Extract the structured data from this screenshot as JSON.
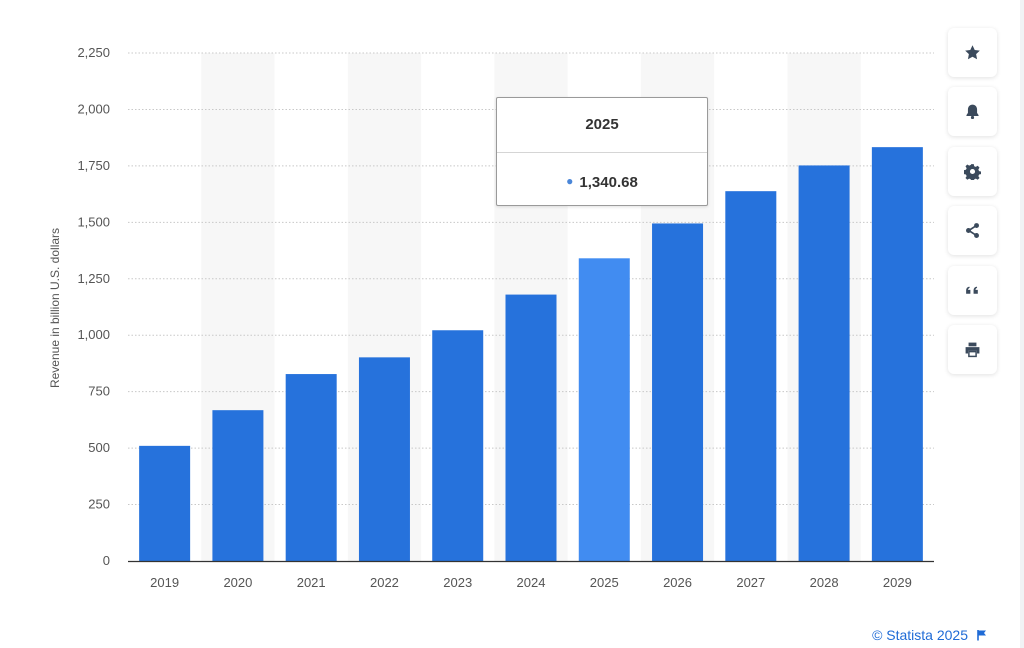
{
  "chart_data": {
    "type": "bar",
    "title": "",
    "xlabel": "",
    "ylabel": "Revenue in billion U.S. dollars",
    "categories": [
      "2019",
      "2020",
      "2021",
      "2022",
      "2023",
      "2024",
      "2025",
      "2026",
      "2027",
      "2028",
      "2029"
    ],
    "values": [
      510,
      668,
      828,
      902,
      1022,
      1180,
      1340.68,
      1495,
      1638,
      1752,
      1833
    ],
    "ylim": [
      0,
      2250
    ],
    "yticks": [
      0,
      250,
      500,
      750,
      1000,
      1250,
      1500,
      1750,
      2000,
      2250
    ],
    "ytick_labels": [
      "0",
      "250",
      "500",
      "750",
      "1,000",
      "1,250",
      "1,500",
      "1,750",
      "2,000",
      "2,250"
    ],
    "grid": true,
    "highlighted_index": 6,
    "colors": {
      "bar": "#2672dc",
      "highlight": "#418cf1",
      "band": "#f7f7f7",
      "grid": "#c8c8c8",
      "axis": "#333333"
    }
  },
  "tooltip": {
    "title": "2025",
    "value": "1,340.68"
  },
  "toolbar": {
    "buttons": [
      {
        "name": "favorite",
        "icon": "star-icon"
      },
      {
        "name": "notification",
        "icon": "bell-icon"
      },
      {
        "name": "settings",
        "icon": "gear-icon"
      },
      {
        "name": "share",
        "icon": "share-icon"
      },
      {
        "name": "cite",
        "icon": "quote-icon"
      },
      {
        "name": "print",
        "icon": "print-icon"
      }
    ],
    "icon_color": "#3b4a5c"
  },
  "credit": {
    "text": "© Statista 2025",
    "icon": "flag-icon"
  }
}
